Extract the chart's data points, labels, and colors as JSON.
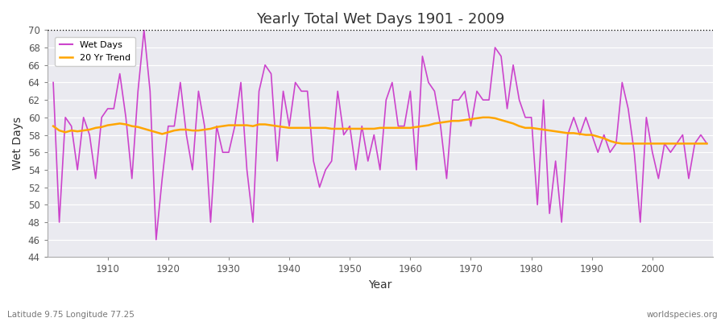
{
  "title": "Yearly Total Wet Days 1901 - 2009",
  "xlabel": "Year",
  "ylabel": "Wet Days",
  "subtitle": "Latitude 9.75 Longitude 77.25",
  "watermark": "worldspecies.org",
  "ylim": [
    44,
    70
  ],
  "yticks": [
    44,
    46,
    48,
    50,
    52,
    54,
    56,
    58,
    60,
    62,
    64,
    66,
    68,
    70
  ],
  "hline_y": 70,
  "wet_days_color": "#CC44CC",
  "trend_color": "#FFA500",
  "fig_bg_color": "#FFFFFF",
  "ax_bg_color": "#EAEAF0",
  "grid_color": "#FFFFFF",
  "legend_labels": [
    "Wet Days",
    "20 Yr Trend"
  ],
  "years": [
    1901,
    1902,
    1903,
    1904,
    1905,
    1906,
    1907,
    1908,
    1909,
    1910,
    1911,
    1912,
    1913,
    1914,
    1915,
    1916,
    1917,
    1918,
    1919,
    1920,
    1921,
    1922,
    1923,
    1924,
    1925,
    1926,
    1927,
    1928,
    1929,
    1930,
    1931,
    1932,
    1933,
    1934,
    1935,
    1936,
    1937,
    1938,
    1939,
    1940,
    1941,
    1942,
    1943,
    1944,
    1945,
    1946,
    1947,
    1948,
    1949,
    1950,
    1951,
    1952,
    1953,
    1954,
    1955,
    1956,
    1957,
    1958,
    1959,
    1960,
    1961,
    1962,
    1963,
    1964,
    1965,
    1966,
    1967,
    1968,
    1969,
    1970,
    1971,
    1972,
    1973,
    1974,
    1975,
    1976,
    1977,
    1978,
    1979,
    1980,
    1981,
    1982,
    1983,
    1984,
    1985,
    1986,
    1987,
    1988,
    1989,
    1990,
    1991,
    1992,
    1993,
    1994,
    1995,
    1996,
    1997,
    1998,
    1999,
    2000,
    2001,
    2002,
    2003,
    2004,
    2005,
    2006,
    2007,
    2008,
    2009
  ],
  "wet_days": [
    64,
    48,
    60,
    59,
    54,
    60,
    58,
    53,
    60,
    61,
    61,
    65,
    60,
    53,
    63,
    70,
    63,
    46,
    53,
    59,
    59,
    64,
    58,
    54,
    63,
    59,
    48,
    59,
    56,
    56,
    59,
    64,
    54,
    48,
    63,
    66,
    65,
    55,
    63,
    59,
    64,
    63,
    63,
    55,
    52,
    54,
    55,
    63,
    58,
    59,
    54,
    59,
    55,
    58,
    54,
    62,
    64,
    59,
    59,
    63,
    54,
    67,
    64,
    63,
    59,
    53,
    62,
    62,
    63,
    59,
    63,
    62,
    62,
    68,
    67,
    61,
    66,
    62,
    60,
    60,
    50,
    62,
    49,
    55,
    48,
    58,
    60,
    58,
    60,
    58,
    56,
    58,
    56,
    57,
    64,
    61,
    56,
    48,
    60,
    56,
    53,
    57,
    56,
    57,
    58,
    53,
    57,
    58,
    57
  ],
  "trend": [
    59.0,
    58.5,
    58.3,
    58.5,
    58.4,
    58.5,
    58.6,
    58.8,
    58.9,
    59.1,
    59.2,
    59.3,
    59.2,
    59.0,
    58.9,
    58.7,
    58.5,
    58.3,
    58.1,
    58.3,
    58.5,
    58.6,
    58.6,
    58.5,
    58.5,
    58.6,
    58.7,
    58.9,
    59.0,
    59.1,
    59.1,
    59.1,
    59.1,
    59.0,
    59.2,
    59.2,
    59.1,
    59.0,
    58.9,
    58.8,
    58.8,
    58.8,
    58.8,
    58.8,
    58.8,
    58.8,
    58.7,
    58.7,
    58.7,
    58.7,
    58.7,
    58.7,
    58.7,
    58.7,
    58.8,
    58.8,
    58.8,
    58.8,
    58.8,
    58.8,
    58.9,
    59.0,
    59.1,
    59.3,
    59.4,
    59.5,
    59.6,
    59.6,
    59.7,
    59.8,
    59.9,
    60.0,
    60.0,
    59.9,
    59.7,
    59.5,
    59.3,
    59.0,
    58.8,
    58.8,
    58.7,
    58.6,
    58.5,
    58.4,
    58.3,
    58.2,
    58.2,
    58.1,
    58.0,
    58.0,
    57.8,
    57.6,
    57.3,
    57.1,
    57.0,
    57.0,
    57.0,
    57.0,
    57.0,
    57.0,
    57.0,
    57.0,
    57.0,
    57.0,
    57.0,
    57.0,
    57.0,
    57.0,
    57.0
  ]
}
